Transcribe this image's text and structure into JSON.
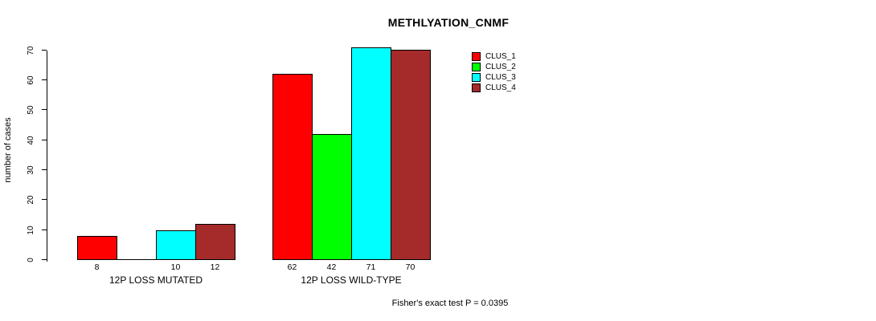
{
  "title": "METHLYATION_CNMF",
  "footer_note": "Fisher's exact test P = 0.0395",
  "chart_data": {
    "type": "bar",
    "title": "METHLYATION_CNMF",
    "xlabel": "",
    "ylabel": "number of cases",
    "ylim": [
      0,
      70
    ],
    "yticks": [
      0,
      10,
      20,
      30,
      40,
      50,
      60,
      70
    ],
    "grid": false,
    "legend_position": "top-right",
    "categories": [
      "12P LOSS MUTATED",
      "12P LOSS WILD-TYPE"
    ],
    "series": [
      {
        "name": "CLUS_1",
        "color": "#ff0000",
        "values": [
          8,
          62
        ],
        "bar_labels": [
          "8",
          "62"
        ]
      },
      {
        "name": "CLUS_2",
        "color": "#00ff00",
        "values": [
          0,
          42
        ],
        "bar_labels": [
          "",
          "42"
        ]
      },
      {
        "name": "CLUS_3",
        "color": "#00ffff",
        "values": [
          10,
          71
        ],
        "bar_labels": [
          "10",
          "71"
        ]
      },
      {
        "name": "CLUS_4",
        "color": "#a52a2a",
        "values": [
          12,
          70
        ],
        "bar_labels": [
          "12",
          "70"
        ]
      }
    ],
    "annotation": "Fisher's exact test P = 0.0395"
  }
}
